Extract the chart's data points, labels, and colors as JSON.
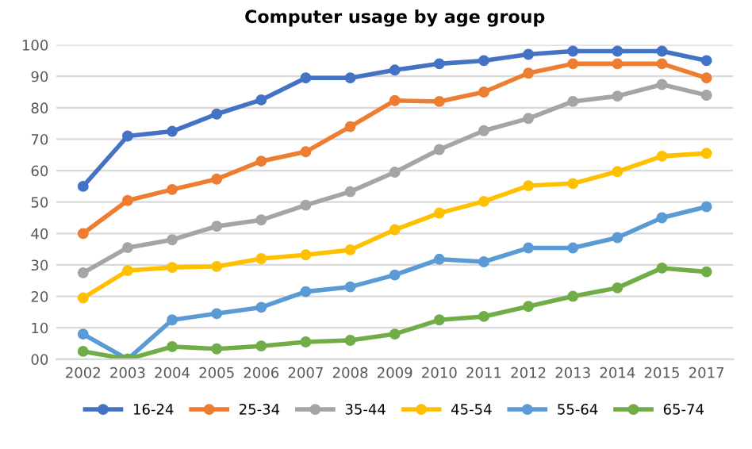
{
  "chart_data": {
    "type": "line",
    "title": "Computer usage by age group",
    "categories": [
      "2002",
      "2003",
      "2004",
      "2005",
      "2006",
      "2007",
      "2008",
      "2009",
      "2010",
      "2011",
      "2012",
      "2013",
      "2014",
      "2015",
      "2017"
    ],
    "series": [
      {
        "name": "16-24",
        "color": "#4472c4",
        "values": [
          55,
          71,
          72.5,
          78,
          82.5,
          89.5,
          89.5,
          92,
          94,
          95,
          97,
          98,
          98,
          98,
          95
        ]
      },
      {
        "name": "25-34",
        "color": "#ed7d31",
        "values": [
          40,
          50.5,
          54,
          57.3,
          63,
          66,
          74,
          82.3,
          82,
          85,
          91,
          94,
          94,
          94,
          89.5
        ]
      },
      {
        "name": "35-44",
        "color": "#a5a5a5",
        "values": [
          27.5,
          35.5,
          38,
          42.3,
          44.3,
          49,
          53.3,
          59.5,
          66.7,
          72.7,
          76.6,
          82,
          83.7,
          87.4,
          84
        ]
      },
      {
        "name": "45-54",
        "color": "#ffc000",
        "values": [
          19.5,
          28.2,
          29.2,
          29.5,
          32,
          33.2,
          34.8,
          41.2,
          46.5,
          50.2,
          55.2,
          55.9,
          59.7,
          64.6,
          65.5
        ]
      },
      {
        "name": "55-64",
        "color": "#5b9bd5",
        "values": [
          8,
          0,
          12.5,
          14.5,
          16.5,
          21.5,
          23,
          26.8,
          31.8,
          31,
          35.4,
          35.4,
          38.7,
          45,
          48.5
        ]
      },
      {
        "name": "65-74",
        "color": "#70ad47",
        "values": [
          2.5,
          0,
          4,
          3.3,
          4.2,
          5.5,
          6,
          8,
          12.5,
          13.6,
          16.8,
          20,
          22.7,
          29,
          27.8
        ]
      }
    ],
    "ylim": [
      0,
      100
    ],
    "yticks": [
      {
        "value": 0,
        "label": "00"
      },
      10,
      20,
      30,
      40,
      50,
      60,
      70,
      80,
      90,
      100
    ],
    "grid": "y",
    "legend": "bottom",
    "marker": "circle",
    "line_style": "solid"
  }
}
